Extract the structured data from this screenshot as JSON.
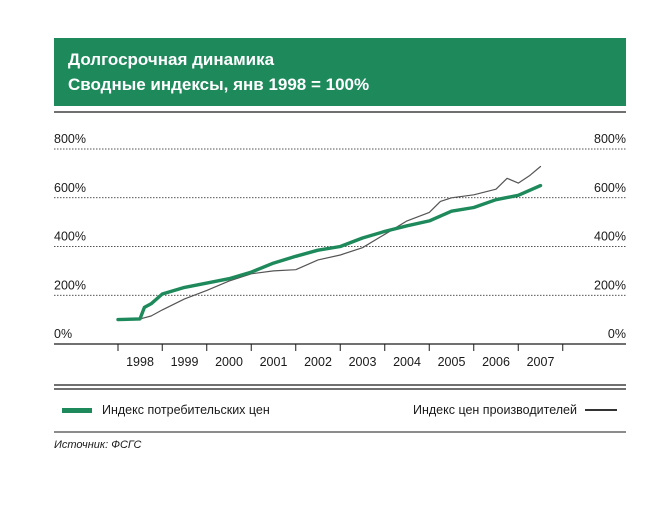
{
  "header": {
    "title": "Долгосрочная динамика",
    "subtitle": "Сводные индексы, янв 1998 = 100%"
  },
  "colors": {
    "accent": "#1e8a5c",
    "secondary_line": "#555555"
  },
  "chart_data": {
    "type": "line",
    "title": "Долгосрочная динамика",
    "subtitle": "Сводные индексы, янв 1998 = 100%",
    "ylim": [
      0,
      800
    ],
    "y_ticks": [
      "0%",
      "200%",
      "400%",
      "600%",
      "800%"
    ],
    "y_tick_values": [
      0,
      200,
      400,
      600,
      800
    ],
    "x_tick_labels": [
      "1998",
      "1999",
      "2000",
      "2001",
      "2002",
      "2003",
      "2004",
      "2005",
      "2006",
      "2007"
    ],
    "xlim": [
      1998.0,
      2007.75
    ],
    "grid": true,
    "legend": "bottom",
    "series": [
      {
        "name": "Индекс потребительских цен",
        "color": "#1e8a5c",
        "x": [
          1998.0,
          1998.5,
          1998.6,
          1998.75,
          1999.0,
          1999.5,
          2000.0,
          2000.5,
          2001.0,
          2001.5,
          2002.0,
          2002.5,
          2003.0,
          2003.5,
          2004.0,
          2004.5,
          2005.0,
          2005.5,
          2006.0,
          2006.5,
          2007.0,
          2007.5
        ],
        "values": [
          100,
          103,
          150,
          165,
          205,
          232,
          250,
          268,
          295,
          332,
          360,
          385,
          400,
          435,
          462,
          485,
          505,
          545,
          560,
          592,
          610,
          650
        ]
      },
      {
        "name": "Индекс цен производителей",
        "color": "#555555",
        "x": [
          1998.0,
          1998.5,
          1998.75,
          1999.0,
          1999.5,
          2000.0,
          2000.5,
          2001.0,
          2001.5,
          2002.0,
          2002.5,
          2003.0,
          2003.5,
          2004.0,
          2004.5,
          2005.0,
          2005.25,
          2005.5,
          2006.0,
          2006.5,
          2006.75,
          2007.0,
          2007.25,
          2007.5
        ],
        "values": [
          100,
          103,
          115,
          140,
          185,
          220,
          258,
          288,
          300,
          305,
          345,
          365,
          395,
          450,
          505,
          540,
          585,
          600,
          612,
          635,
          680,
          660,
          690,
          728
        ]
      }
    ]
  },
  "legend": {
    "cpi_label": "Индекс потребительских цен",
    "ppi_label": "Индекс цен производителей"
  },
  "footer": {
    "source": "Источник: ФСГС"
  }
}
